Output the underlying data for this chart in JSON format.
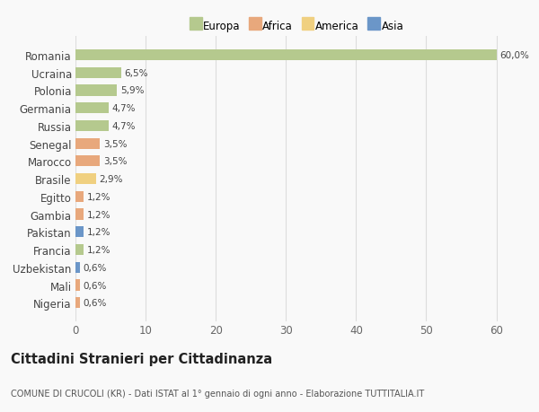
{
  "countries": [
    "Romania",
    "Ucraina",
    "Polonia",
    "Germania",
    "Russia",
    "Senegal",
    "Marocco",
    "Brasile",
    "Egitto",
    "Gambia",
    "Pakistan",
    "Francia",
    "Uzbekistan",
    "Mali",
    "Nigeria"
  ],
  "values": [
    60.0,
    6.5,
    5.9,
    4.7,
    4.7,
    3.5,
    3.5,
    2.9,
    1.2,
    1.2,
    1.2,
    1.2,
    0.6,
    0.6,
    0.6
  ],
  "labels": [
    "60,0%",
    "6,5%",
    "5,9%",
    "4,7%",
    "4,7%",
    "3,5%",
    "3,5%",
    "2,9%",
    "1,2%",
    "1,2%",
    "1,2%",
    "1,2%",
    "0,6%",
    "0,6%",
    "0,6%"
  ],
  "colors": [
    "#b5c98e",
    "#b5c98e",
    "#b5c98e",
    "#b5c98e",
    "#b5c98e",
    "#e8a87c",
    "#e8a87c",
    "#f0d080",
    "#e8a87c",
    "#e8a87c",
    "#6b96c8",
    "#b5c98e",
    "#6b96c8",
    "#e8a87c",
    "#e8a87c"
  ],
  "legend_labels": [
    "Europa",
    "Africa",
    "America",
    "Asia"
  ],
  "legend_colors": [
    "#b5c98e",
    "#e8a87c",
    "#f0d080",
    "#6b96c8"
  ],
  "title": "Cittadini Stranieri per Cittadinanza",
  "subtitle": "COMUNE DI CRUCOLI (KR) - Dati ISTAT al 1° gennaio di ogni anno - Elaborazione TUTTITALIA.IT",
  "xlim": [
    0,
    63
  ],
  "xticks": [
    0,
    10,
    20,
    30,
    40,
    50,
    60
  ],
  "background_color": "#f9f9f9",
  "grid_color": "#dddddd"
}
